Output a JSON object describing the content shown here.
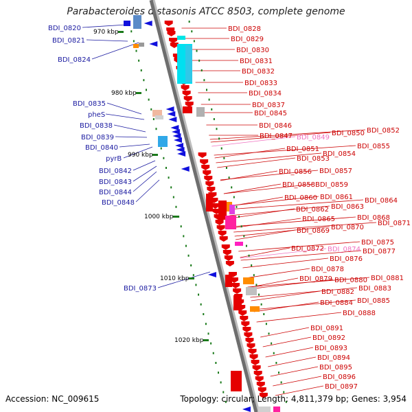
{
  "title": "Parabacteroides distasonis ATCC 8503, complete genome",
  "footer": {
    "accession": "Accession: NC_009615",
    "topology": "Topology: circular; Length: 4,811,379 bp; Genes: 3,954"
  },
  "colors": {
    "left_labels": "#1a1aa0",
    "right_labels": "#cc0000",
    "faint_labels": "#f070c0",
    "ticks": "#1a7a1a",
    "backbone": "#9a9a9a",
    "forward_gene": "#e50000",
    "reverse_gene": "#1010dd"
  },
  "scale": {
    "unit": "kbp",
    "ticks": [
      "970 kbp",
      "980 kbp",
      "990 kbp",
      "1000 kbp",
      "1010 kbp",
      "1020 kbp"
    ]
  },
  "left_genes": [
    "BDI_0820",
    "BDI_0821",
    "BDI_0824",
    "BDI_0835",
    "pheS",
    "BDI_0838",
    "BDI_0839",
    "BDI_0840",
    "pyrB",
    "BDI_0842",
    "BDI_0843",
    "BDI_0844",
    "BDI_0848",
    "BDI_0873"
  ],
  "right_genes": [
    "BDI_0828",
    "BDI_0829",
    "BDI_0830",
    "BDI_0831",
    "BDI_0832",
    "BDI_0833",
    "BDI_0834",
    "BDI_0837",
    "BDI_0845",
    "BDI_0846",
    "BDI_0847",
    "BDI_0849",
    "BDI_0850",
    "BDI_0852",
    "BDI_0851",
    "BDI_0853",
    "BDI_0854",
    "BDI_0855",
    "BDI_0856",
    "BDI_0857",
    "BDI_0858",
    "BDI_0859",
    "BDI_0860",
    "BDI_0861",
    "BDI_0864",
    "BDI_0862",
    "BDI_0863",
    "BDI_0865",
    "BDI_0868",
    "BDI_0869",
    "BDI_0870",
    "BDI_0871",
    "BDI_0872",
    "BDI_0874",
    "BDI_0875",
    "BDI_0876",
    "BDI_0877",
    "BDI_0878",
    "BDI_0879",
    "BDI_0880",
    "BDI_0881",
    "BDI_0882",
    "BDI_0883",
    "BDI_0884",
    "BDI_0885",
    "BDI_0888",
    "BDI_0891",
    "BDI_0892",
    "BDI_0893",
    "BDI_0894",
    "BDI_0895",
    "BDI_0896",
    "BDI_0897"
  ]
}
